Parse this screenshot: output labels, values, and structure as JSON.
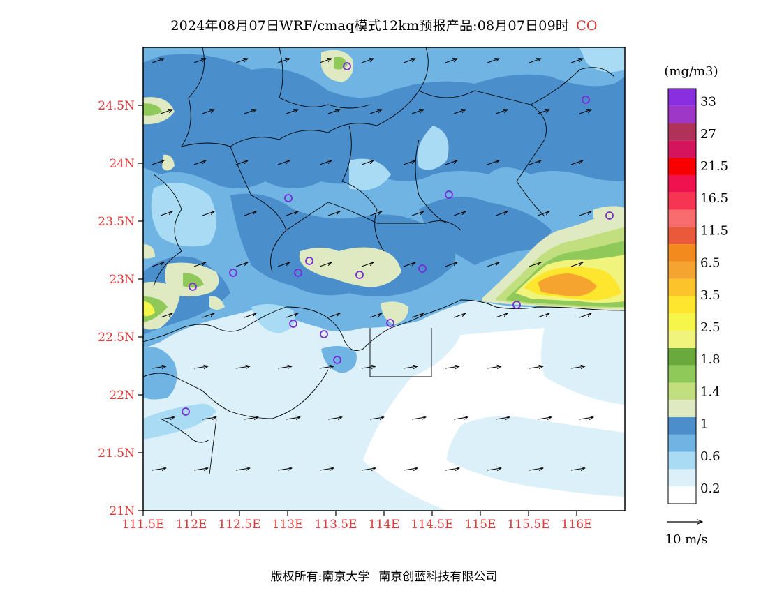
{
  "title": {
    "main": "2024年08月07日WRF/cmaq模式12km预报产品:08月07日09时",
    "species": "CO",
    "species_color": "#e03030"
  },
  "axes": {
    "lat_ticks": [
      "21N",
      "21.5N",
      "22N",
      "22.5N",
      "23N",
      "23.5N",
      "24N",
      "24.5N"
    ],
    "lon_ticks": [
      "111.5E",
      "112E",
      "112.5E",
      "113E",
      "113.5E",
      "114E",
      "114.5E",
      "115E",
      "115.5E",
      "116E"
    ],
    "label_color": "#e53838"
  },
  "colorbar": {
    "unit": "(mg/m3)",
    "labels": [
      "0.2",
      "0.6",
      "1",
      "1.4",
      "1.8",
      "2.5",
      "3.5",
      "6.5",
      "11.5",
      "16.5",
      "21.5",
      "27",
      "33"
    ],
    "colors": [
      "#ffffff",
      "#dcf0fa",
      "#a9dcf4",
      "#6fb4e3",
      "#4a8ecb",
      "#dfeac3",
      "#c2df7f",
      "#8fc95a",
      "#6aaa3c",
      "#f0f37c",
      "#f6f54a",
      "#fde62d",
      "#fdc32b",
      "#f5a430",
      "#f38a1e",
      "#e9593a",
      "#f96c6e",
      "#f53552",
      "#f0124e",
      "#f80000",
      "#d4145d",
      "#b0325a",
      "#9e36c7",
      "#8a2fe0"
    ],
    "colors_note_names": [
      "white",
      "lightest-blue",
      "light-blue",
      "mid-blue",
      "dark-blue",
      "pale-green",
      "light-green",
      "green",
      "dark-green",
      "light-yellow",
      "yellow",
      "gold",
      "light-orange",
      "orange",
      "dark-orange",
      "orange-red",
      "salmon",
      "pink-red",
      "crimson",
      "red",
      "magenta-red",
      "dark-magenta",
      "violet",
      "purple"
    ]
  },
  "wind_reference": {
    "label": "10 m/s"
  },
  "footer": {
    "left": "版权所有:南京大学",
    "right": "南京创蓝科技有限公司"
  }
}
